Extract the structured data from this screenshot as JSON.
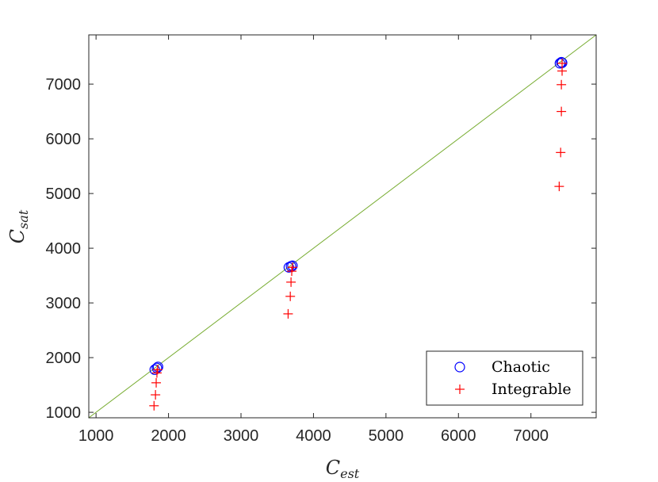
{
  "chart_data": {
    "type": "scatter",
    "xlabel": "C",
    "xlabel_sub": "est",
    "ylabel": "C",
    "ylabel_sub": "sat",
    "xlim": [
      900,
      7900
    ],
    "ylim": [
      900,
      7900
    ],
    "xticks": [
      1000,
      2000,
      3000,
      4000,
      5000,
      6000,
      7000
    ],
    "yticks": [
      1000,
      2000,
      3000,
      4000,
      5000,
      6000,
      7000
    ],
    "grid": false,
    "legend_position": "bottom-right",
    "reference_line": {
      "x": [
        900,
        7900
      ],
      "y": [
        900,
        7900
      ],
      "color": "#77ac30"
    },
    "series": [
      {
        "name": "Chaotic",
        "marker": "circle",
        "color": "#0000ff",
        "points": [
          [
            1810,
            1780
          ],
          [
            1840,
            1810
          ],
          [
            1855,
            1830
          ],
          [
            3660,
            3650
          ],
          [
            3690,
            3670
          ],
          [
            3710,
            3680
          ],
          [
            7400,
            7380
          ],
          [
            7420,
            7400
          ],
          [
            7430,
            7390
          ]
        ]
      },
      {
        "name": "Integrable",
        "marker": "plus",
        "color": "#ff0000",
        "points": [
          [
            1800,
            1120
          ],
          [
            1820,
            1320
          ],
          [
            1830,
            1540
          ],
          [
            1840,
            1720
          ],
          [
            1850,
            1780
          ],
          [
            3650,
            2800
          ],
          [
            3680,
            3120
          ],
          [
            3690,
            3380
          ],
          [
            3700,
            3580
          ],
          [
            3710,
            3650
          ],
          [
            7390,
            5130
          ],
          [
            7410,
            5750
          ],
          [
            7420,
            6500
          ],
          [
            7420,
            6990
          ],
          [
            7430,
            7240
          ],
          [
            7430,
            7380
          ]
        ]
      }
    ]
  }
}
